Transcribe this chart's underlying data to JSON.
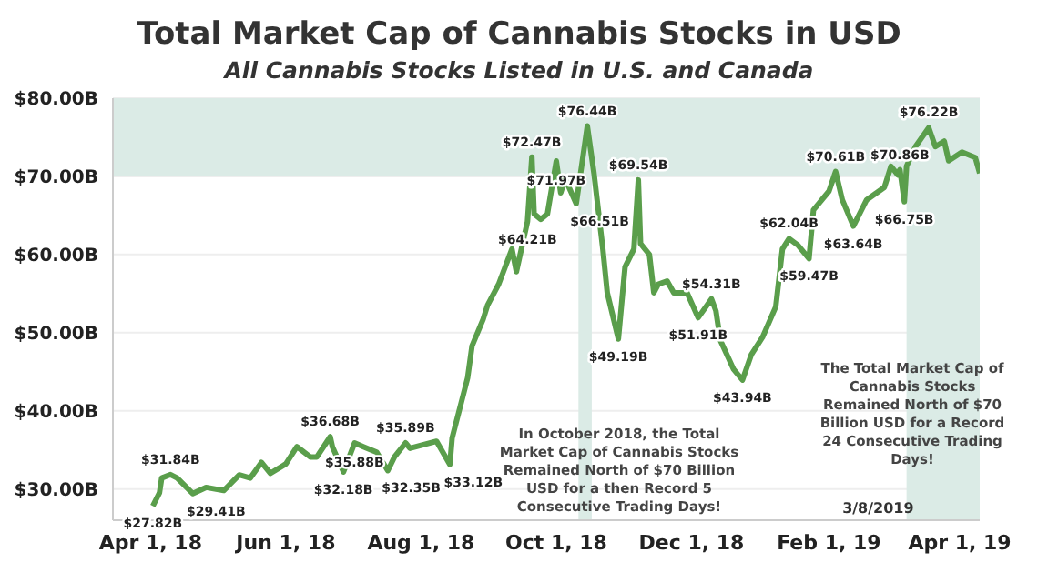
{
  "chart_data": {
    "type": "line",
    "title": "Total Market Cap of Cannabis Stocks in USD",
    "subtitle": "All Cannabis Stocks Listed in U.S. and Canada",
    "xlim": [
      "2018-03-15",
      "2019-04-10"
    ],
    "xticks": [
      {
        "value": "2018-04-01",
        "label": "Apr 1, 18"
      },
      {
        "value": "2018-06-01",
        "label": "Jun 1, 18"
      },
      {
        "value": "2018-08-01",
        "label": "Aug 1, 18"
      },
      {
        "value": "2018-10-01",
        "label": "Oct 1, 18"
      },
      {
        "value": "2018-12-01",
        "label": "Dec 1, 18"
      },
      {
        "value": "2019-02-01",
        "label": "Feb 1, 19"
      },
      {
        "value": "2019-04-01",
        "label": "Apr 1, 19"
      }
    ],
    "ylim": [
      26,
      80
    ],
    "yticks": [
      {
        "value": 30,
        "label": "$30.00B"
      },
      {
        "value": 40,
        "label": "$40.00B"
      },
      {
        "value": 50,
        "label": "$50.00B"
      },
      {
        "value": 60,
        "label": "$60.00B"
      },
      {
        "value": 70,
        "label": "$70.00B"
      },
      {
        "value": 80,
        "label": "$80.00B"
      }
    ],
    "grid": "y",
    "marker": "none",
    "line_style": "solid",
    "bands": [
      {
        "axis": "y",
        "from": 70,
        "to": 80,
        "color": "#dbebe6"
      },
      {
        "axis": "x",
        "from": "2018-10-11",
        "to": "2018-10-17",
        "color": "#dbebe6"
      },
      {
        "axis": "x",
        "from": "2019-03-08",
        "to": "2019-04-10",
        "label": "3/8/2019",
        "color": "#dbebe6"
      }
    ],
    "annotations": [
      "In October 2018, the Total Market Cap of Cannabis Stocks Remained North of $70 Billion USD for a then Record 5 Consecutive Trading Days!",
      "The Total Market Cap of Cannabis Stocks Remained North of $70 Billion USD for a Record 24 Consecutive Trading Days!"
    ],
    "series": [
      {
        "color": "#5a9e4b",
        "x": [
          "2018-04-02",
          "2018-04-05",
          "2018-04-06",
          "2018-04-10",
          "2018-04-13",
          "2018-04-20",
          "2018-04-26",
          "2018-05-04",
          "2018-05-11",
          "2018-05-16",
          "2018-05-21",
          "2018-05-25",
          "2018-06-01",
          "2018-06-06",
          "2018-06-12",
          "2018-06-15",
          "2018-06-21",
          "2018-06-22",
          "2018-06-27",
          "2018-07-02",
          "2018-07-06",
          "2018-07-12",
          "2018-07-17",
          "2018-07-20",
          "2018-07-25",
          "2018-07-27",
          "2018-08-08",
          "2018-08-14",
          "2018-08-15",
          "2018-08-22",
          "2018-08-24",
          "2018-08-29",
          "2018-08-31",
          "2018-09-05",
          "2018-09-11",
          "2018-09-13",
          "2018-09-18",
          "2018-09-20",
          "2018-09-21",
          "2018-09-24",
          "2018-09-27",
          "2018-10-01",
          "2018-10-03",
          "2018-10-05",
          "2018-10-10",
          "2018-10-15",
          "2018-10-18",
          "2018-10-22",
          "2018-10-24",
          "2018-10-29",
          "2018-11-01",
          "2018-11-05",
          "2018-11-07",
          "2018-11-08",
          "2018-11-12",
          "2018-11-14",
          "2018-11-16",
          "2018-11-20",
          "2018-11-23",
          "2018-11-29",
          "2018-12-04",
          "2018-12-10",
          "2018-12-12",
          "2018-12-14",
          "2018-12-20",
          "2018-12-24",
          "2018-12-28",
          "2019-01-02",
          "2019-01-08",
          "2019-01-11",
          "2019-01-14",
          "2019-01-18",
          "2019-01-23",
          "2019-01-25",
          "2019-02-01",
          "2019-02-04",
          "2019-02-07",
          "2019-02-12",
          "2019-02-18",
          "2019-02-26",
          "2019-03-01",
          "2019-03-04",
          "2019-03-05",
          "2019-03-07",
          "2019-03-08",
          "2019-03-12",
          "2019-03-18",
          "2019-03-21",
          "2019-03-25",
          "2019-03-27",
          "2019-04-02",
          "2019-04-08",
          "2019-04-10"
        ],
        "values": [
          27.82,
          29.5,
          31.4,
          31.84,
          31.4,
          29.41,
          30.2,
          29.8,
          31.8,
          31.4,
          33.4,
          32.0,
          33.2,
          35.4,
          34.1,
          34.1,
          36.68,
          35.4,
          32.18,
          35.88,
          35.4,
          34.7,
          32.35,
          34.1,
          35.89,
          35.2,
          36.1,
          33.12,
          36.5,
          44.2,
          48.3,
          51.7,
          53.5,
          56.2,
          60.7,
          57.8,
          64.21,
          72.47,
          65.2,
          64.5,
          65.2,
          71.97,
          67.9,
          69.7,
          66.51,
          76.44,
          70.4,
          60.7,
          55.1,
          49.19,
          58.4,
          60.7,
          69.54,
          61.4,
          60.0,
          55.1,
          56.2,
          56.6,
          55.1,
          55.1,
          51.91,
          54.31,
          52.8,
          49.0,
          45.3,
          43.94,
          47.2,
          49.4,
          53.3,
          60.7,
          62.04,
          61.2,
          59.47,
          65.7,
          68.1,
          70.61,
          67.0,
          63.64,
          67.0,
          68.6,
          71.3,
          70.2,
          70.86,
          66.75,
          71.3,
          73.8,
          76.22,
          73.8,
          74.5,
          72.0,
          73.1,
          72.4,
          70.4
        ],
        "value_labels": [
          "$27.82B",
          null,
          null,
          "$31.84B",
          null,
          "$29.41B",
          null,
          null,
          null,
          null,
          null,
          null,
          null,
          null,
          null,
          null,
          "$36.68B",
          null,
          "$32.18B",
          "$35.88B",
          null,
          null,
          "$32.35B",
          null,
          "$35.89B",
          null,
          null,
          "$33.12B",
          null,
          null,
          null,
          null,
          null,
          null,
          null,
          null,
          "$64.21B",
          "$72.47B",
          null,
          null,
          null,
          "$71.97B",
          null,
          null,
          "$66.51B",
          "$76.44B",
          null,
          null,
          null,
          "$49.19B",
          null,
          null,
          "$69.54B",
          null,
          null,
          null,
          null,
          null,
          null,
          null,
          "$51.91B",
          "$54.31B",
          null,
          null,
          null,
          "$43.94B",
          null,
          null,
          null,
          null,
          "$62.04B",
          null,
          "$59.47B",
          null,
          null,
          "$70.61B",
          null,
          "$63.64B",
          null,
          null,
          null,
          null,
          "$70.86B",
          "$66.75B",
          null,
          null,
          "$76.22B",
          null,
          null,
          null,
          null,
          null,
          null
        ]
      }
    ]
  }
}
